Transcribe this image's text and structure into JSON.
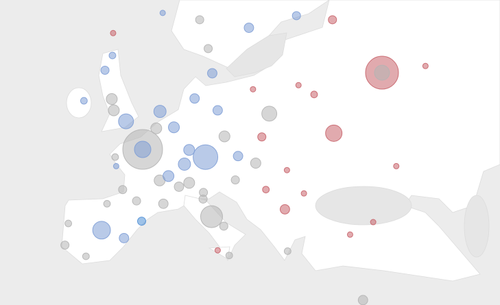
{
  "map": {
    "type": "bubble-map",
    "points": [
      {
        "lon": 2.35,
        "lat": 48.85,
        "size": 210,
        "color": "#b4b4b4"
      },
      {
        "lon": 2.35,
        "lat": 48.85,
        "size": 36,
        "color": "#7f9fd6"
      },
      {
        "lon": 37.6,
        "lat": 55.75,
        "size": 144,
        "color": "#c8646b"
      },
      {
        "lon": 37.6,
        "lat": 55.75,
        "size": 30,
        "color": "#b4b4b4"
      },
      {
        "lon": 11.6,
        "lat": 48.1,
        "size": 81,
        "color": "#7f9fd6"
      },
      {
        "lon": -0.1,
        "lat": 51.5,
        "size": 30,
        "color": "#7f9fd6"
      },
      {
        "lon": -3.7,
        "lat": 40.4,
        "size": 42,
        "color": "#7f9fd6"
      },
      {
        "lon": 12.5,
        "lat": 41.9,
        "size": 64,
        "color": "#b4b4b4"
      },
      {
        "lon": 30.5,
        "lat": 50.4,
        "size": 36,
        "color": "#c8646b"
      },
      {
        "lon": 21.0,
        "lat": 52.2,
        "size": 30,
        "color": "#b4b4b4"
      },
      {
        "lon": 18.0,
        "lat": 59.3,
        "size": 12,
        "color": "#7f9fd6"
      },
      {
        "lon": 25.0,
        "lat": 60.2,
        "size": 9,
        "color": "#7f9fd6"
      },
      {
        "lon": 30.3,
        "lat": 59.9,
        "size": 9,
        "color": "#c8646b"
      },
      {
        "lon": 44.0,
        "lat": 56.3,
        "size": 4,
        "color": "#c8646b"
      },
      {
        "lon": 4.9,
        "lat": 52.4,
        "size": 20,
        "color": "#7f9fd6"
      },
      {
        "lon": 12.6,
        "lat": 55.7,
        "size": 12,
        "color": "#7f9fd6"
      },
      {
        "lon": 13.4,
        "lat": 52.5,
        "size": 12,
        "color": "#7f9fd6"
      },
      {
        "lon": -6.3,
        "lat": 53.35,
        "size": 6,
        "color": "#7f9fd6"
      },
      {
        "lon": -3.2,
        "lat": 55.95,
        "size": 9,
        "color": "#7f9fd6"
      },
      {
        "lon": -2.2,
        "lat": 53.5,
        "size": 16,
        "color": "#b4b4b4"
      },
      {
        "lon": 4.35,
        "lat": 50.85,
        "size": 16,
        "color": "#b4b4b4"
      },
      {
        "lon": 8.5,
        "lat": 47.4,
        "size": 20,
        "color": "#7f9fd6"
      },
      {
        "lon": 16.4,
        "lat": 48.2,
        "size": 12,
        "color": "#7f9fd6"
      },
      {
        "lon": 19.0,
        "lat": 47.5,
        "size": 14,
        "color": "#b4b4b4"
      },
      {
        "lon": 14.4,
        "lat": 50.1,
        "size": 16,
        "color": "#b4b4b4"
      },
      {
        "lon": 4.85,
        "lat": 45.75,
        "size": 16,
        "color": "#b4b4b4"
      },
      {
        "lon": 5.4,
        "lat": 43.3,
        "size": 12,
        "color": "#b4b4b4"
      },
      {
        "lon": 2.2,
        "lat": 41.4,
        "size": 9,
        "color": "#4f8fd6"
      },
      {
        "lon": -9.1,
        "lat": 38.7,
        "size": 9,
        "color": "#b4b4b4"
      },
      {
        "lon": -6.0,
        "lat": 37.4,
        "size": 6,
        "color": "#b4b4b4"
      },
      {
        "lon": -0.4,
        "lat": 39.5,
        "size": 12,
        "color": "#7f9fd6"
      },
      {
        "lon": -2.9,
        "lat": 43.3,
        "size": 6,
        "color": "#b4b4b4"
      },
      {
        "lon": -0.6,
        "lat": 44.8,
        "size": 9,
        "color": "#b4b4b4"
      },
      {
        "lon": 7.7,
        "lat": 45.1,
        "size": 12,
        "color": "#b4b4b4"
      },
      {
        "lon": 9.2,
        "lat": 45.5,
        "size": 16,
        "color": "#b4b4b4"
      },
      {
        "lon": 14.3,
        "lat": 40.85,
        "size": 9,
        "color": "#b4b4b4"
      },
      {
        "lon": 23.7,
        "lat": 38.0,
        "size": 6,
        "color": "#b4b4b4"
      },
      {
        "lon": 26.1,
        "lat": 44.4,
        "size": 4,
        "color": "#c8646b"
      },
      {
        "lon": 20.5,
        "lat": 44.8,
        "size": 6,
        "color": "#c8646b"
      },
      {
        "lon": 23.3,
        "lat": 42.7,
        "size": 12,
        "color": "#c8646b"
      },
      {
        "lon": 32.9,
        "lat": 39.9,
        "size": 4,
        "color": "#c8646b"
      },
      {
        "lon": 36.3,
        "lat": 41.3,
        "size": 4,
        "color": "#c8646b"
      },
      {
        "lon": 25.3,
        "lat": 54.7,
        "size": 4,
        "color": "#c8646b"
      },
      {
        "lon": 39.7,
        "lat": 47.2,
        "size": 4,
        "color": "#c8646b"
      },
      {
        "lon": 23.6,
        "lat": 46.8,
        "size": 4,
        "color": "#c8646b"
      },
      {
        "lon": 19.9,
        "lat": 50.05,
        "size": 9,
        "color": "#c8646b"
      },
      {
        "lon": 18.6,
        "lat": 54.35,
        "size": 4,
        "color": "#c8646b"
      },
      {
        "lon": 27.6,
        "lat": 53.9,
        "size": 6,
        "color": "#c8646b"
      },
      {
        "lon": 10.75,
        "lat": 59.9,
        "size": 9,
        "color": "#b4b4b4"
      },
      {
        "lon": 12.0,
        "lat": 57.7,
        "size": 9,
        "color": "#b4b4b4"
      },
      {
        "lon": 10.0,
        "lat": 53.55,
        "size": 12,
        "color": "#7f9fd6"
      },
      {
        "lon": 6.95,
        "lat": 50.95,
        "size": 16,
        "color": "#7f9fd6"
      },
      {
        "lon": 9.2,
        "lat": 48.8,
        "size": 16,
        "color": "#7f9fd6"
      },
      {
        "lon": 6.15,
        "lat": 46.2,
        "size": 16,
        "color": "#7f9fd6"
      },
      {
        "lon": 34.8,
        "lat": 32.1,
        "size": 12,
        "color": "#b4b4b4"
      },
      {
        "lon": -1.9,
        "lat": 52.5,
        "size": 16,
        "color": "#b4b4b4"
      },
      {
        "lon": -2.1,
        "lat": 57.15,
        "size": 6,
        "color": "#7f9fd6"
      },
      {
        "lon": 16.0,
        "lat": 45.8,
        "size": 9,
        "color": "#b4b4b4"
      },
      {
        "lon": 11.3,
        "lat": 44.5,
        "size": 9,
        "color": "#b4b4b4"
      },
      {
        "lon": 11.25,
        "lat": 43.8,
        "size": 9,
        "color": "#b4b4b4"
      },
      {
        "lon": 13.4,
        "lat": 38.1,
        "size": 4,
        "color": "#c8646b"
      },
      {
        "lon": 15.1,
        "lat": 37.5,
        "size": 6,
        "color": "#b4b4b4"
      },
      {
        "lon": -8.6,
        "lat": 41.15,
        "size": 6,
        "color": "#b4b4b4"
      },
      {
        "lon": -1.7,
        "lat": 48.1,
        "size": 6,
        "color": "#b4b4b4"
      },
      {
        "lon": -1.55,
        "lat": 47.2,
        "size": 4,
        "color": "#7f9fd6"
      },
      {
        "lon": 1.45,
        "lat": 43.6,
        "size": 9,
        "color": "#b4b4b4"
      },
      {
        "lon": -2.0,
        "lat": 58.9,
        "size": 4,
        "color": "#c8646b"
      },
      {
        "lon": 5.3,
        "lat": 60.4,
        "size": 4,
        "color": "#7f9fd6"
      }
    ]
  }
}
